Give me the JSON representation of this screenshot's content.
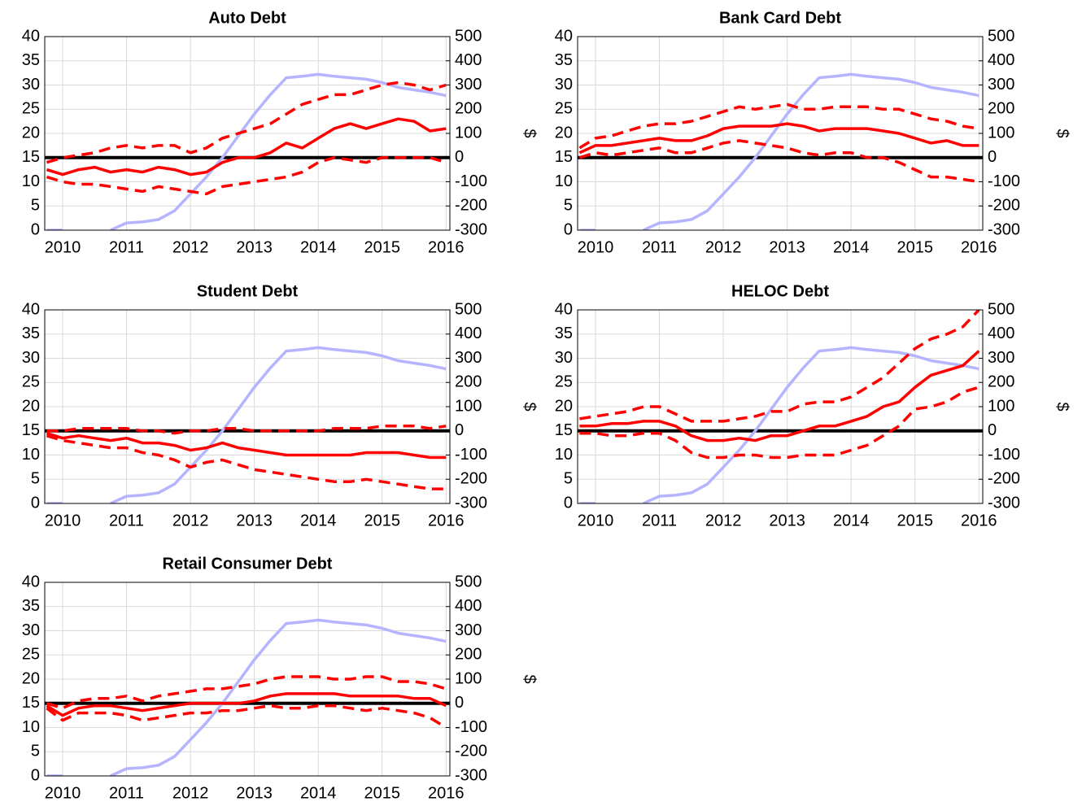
{
  "chart_data": [
    {
      "type": "line",
      "title": "Auto Debt",
      "y2label": "$",
      "x": [
        2009.75,
        2010,
        2010.25,
        2010.5,
        2010.75,
        2011,
        2011.25,
        2011.5,
        2011.75,
        2012,
        2012.25,
        2012.5,
        2012.75,
        2013,
        2013.25,
        2013.5,
        2013.75,
        2014,
        2014.25,
        2014.5,
        2014.75,
        2015,
        2015.25,
        2015.5,
        2015.75,
        2016
      ],
      "xlim": [
        2009.72,
        2016.06
      ],
      "xticks": [
        2010,
        2011,
        2012,
        2013,
        2014,
        2015,
        2016
      ],
      "ylim": [
        0,
        40
      ],
      "yticks": [
        0,
        5,
        10,
        15,
        20,
        25,
        30,
        35,
        40
      ],
      "y2lim": [
        -300,
        500
      ],
      "y2ticks": [
        -300,
        -200,
        -100,
        0,
        100,
        200,
        300,
        400,
        500
      ],
      "grid": true,
      "reference_line": {
        "value": 0,
        "axis": "y2",
        "color": "#000000"
      },
      "series": [
        {
          "color": "#b4b4ff",
          "axis": "y",
          "values": [
            0,
            0,
            null,
            null,
            0,
            1.5,
            1.7,
            2.2,
            4,
            7.5,
            11,
            15,
            19.5,
            24,
            28,
            31.5,
            31.8,
            32.2,
            31.8,
            31.5,
            31.2,
            30.5,
            29.5,
            29,
            28.5,
            27.8
          ]
        },
        {
          "color": "#ff0000",
          "axis": "y2",
          "dashed": false,
          "values": [
            -50,
            -70,
            -50,
            -40,
            -60,
            -50,
            -60,
            -40,
            -50,
            -70,
            -60,
            -20,
            0,
            0,
            20,
            60,
            40,
            80,
            120,
            140,
            120,
            140,
            160,
            150,
            110,
            120
          ]
        },
        {
          "color": "#ff0000",
          "axis": "y2",
          "dashed": true,
          "values": [
            -20,
            0,
            10,
            20,
            40,
            50,
            40,
            50,
            50,
            20,
            40,
            80,
            100,
            120,
            140,
            180,
            220,
            240,
            260,
            260,
            280,
            300,
            310,
            300,
            280,
            300
          ]
        },
        {
          "color": "#ff0000",
          "axis": "y2",
          "dashed": true,
          "values": [
            -80,
            -100,
            -110,
            -110,
            -120,
            -130,
            -140,
            -120,
            -130,
            -140,
            -150,
            -120,
            -110,
            -100,
            -90,
            -80,
            -60,
            -20,
            0,
            -10,
            -20,
            0,
            0,
            0,
            0,
            -20
          ]
        }
      ]
    },
    {
      "type": "line",
      "title": "Bank Card Debt",
      "y2label": "$",
      "x": [
        2009.75,
        2010,
        2010.25,
        2010.5,
        2010.75,
        2011,
        2011.25,
        2011.5,
        2011.75,
        2012,
        2012.25,
        2012.5,
        2012.75,
        2013,
        2013.25,
        2013.5,
        2013.75,
        2014,
        2014.25,
        2014.5,
        2014.75,
        2015,
        2015.25,
        2015.5,
        2015.75,
        2016
      ],
      "xlim": [
        2009.72,
        2016.06
      ],
      "xticks": [
        2010,
        2011,
        2012,
        2013,
        2014,
        2015,
        2016
      ],
      "ylim": [
        0,
        40
      ],
      "yticks": [
        0,
        5,
        10,
        15,
        20,
        25,
        30,
        35,
        40
      ],
      "y2lim": [
        -300,
        500
      ],
      "y2ticks": [
        -300,
        -200,
        -100,
        0,
        100,
        200,
        300,
        400,
        500
      ],
      "grid": true,
      "reference_line": {
        "value": 0,
        "axis": "y2",
        "color": "#000000"
      },
      "series": [
        {
          "color": "#b4b4ff",
          "axis": "y",
          "values": [
            0,
            0,
            null,
            null,
            0,
            1.5,
            1.7,
            2.2,
            4,
            7.5,
            11,
            15,
            19.5,
            24,
            28,
            31.5,
            31.8,
            32.2,
            31.8,
            31.5,
            31.2,
            30.5,
            29.5,
            29,
            28.5,
            27.8
          ]
        },
        {
          "color": "#ff0000",
          "axis": "y2",
          "dashed": false,
          "values": [
            20,
            50,
            50,
            60,
            70,
            80,
            70,
            70,
            90,
            120,
            130,
            130,
            130,
            140,
            130,
            110,
            120,
            120,
            120,
            110,
            100,
            80,
            60,
            70,
            50,
            50
          ]
        },
        {
          "color": "#ff0000",
          "axis": "y2",
          "dashed": true,
          "values": [
            40,
            80,
            90,
            110,
            130,
            140,
            140,
            150,
            170,
            190,
            210,
            200,
            210,
            220,
            200,
            200,
            210,
            210,
            210,
            200,
            200,
            180,
            160,
            150,
            130,
            120
          ]
        },
        {
          "color": "#ff0000",
          "axis": "y2",
          "dashed": true,
          "values": [
            0,
            20,
            10,
            20,
            30,
            40,
            20,
            20,
            40,
            60,
            70,
            60,
            50,
            40,
            20,
            10,
            20,
            20,
            0,
            0,
            -20,
            -50,
            -80,
            -80,
            -90,
            -100
          ]
        }
      ]
    },
    {
      "type": "line",
      "title": "Student Debt",
      "y2label": "$",
      "x": [
        2009.75,
        2010,
        2010.25,
        2010.5,
        2010.75,
        2011,
        2011.25,
        2011.5,
        2011.75,
        2012,
        2012.25,
        2012.5,
        2012.75,
        2013,
        2013.25,
        2013.5,
        2013.75,
        2014,
        2014.25,
        2014.5,
        2014.75,
        2015,
        2015.25,
        2015.5,
        2015.75,
        2016
      ],
      "xlim": [
        2009.72,
        2016.06
      ],
      "xticks": [
        2010,
        2011,
        2012,
        2013,
        2014,
        2015,
        2016
      ],
      "ylim": [
        0,
        40
      ],
      "yticks": [
        0,
        5,
        10,
        15,
        20,
        25,
        30,
        35,
        40
      ],
      "y2lim": [
        -300,
        500
      ],
      "y2ticks": [
        -300,
        -200,
        -100,
        0,
        100,
        200,
        300,
        400,
        500
      ],
      "grid": true,
      "reference_line": {
        "value": 0,
        "axis": "y2",
        "color": "#000000"
      },
      "series": [
        {
          "color": "#b4b4ff",
          "axis": "y",
          "values": [
            0,
            0,
            null,
            null,
            0,
            1.5,
            1.7,
            2.2,
            4,
            7.5,
            11,
            15,
            19.5,
            24,
            28,
            31.5,
            31.8,
            32.2,
            31.8,
            31.5,
            31.2,
            30.5,
            29.5,
            29,
            28.5,
            27.8
          ]
        },
        {
          "color": "#ff0000",
          "axis": "y2",
          "dashed": false,
          "values": [
            -10,
            -30,
            -20,
            -30,
            -40,
            -30,
            -50,
            -50,
            -60,
            -80,
            -70,
            -50,
            -70,
            -80,
            -90,
            -100,
            -100,
            -100,
            -100,
            -100,
            -90,
            -90,
            -90,
            -100,
            -110,
            -110
          ]
        },
        {
          "color": "#ff0000",
          "axis": "y2",
          "dashed": true,
          "values": [
            0,
            0,
            10,
            10,
            10,
            10,
            0,
            0,
            -10,
            0,
            0,
            10,
            10,
            0,
            0,
            0,
            0,
            0,
            10,
            10,
            10,
            20,
            20,
            20,
            10,
            20
          ]
        },
        {
          "color": "#ff0000",
          "axis": "y2",
          "dashed": true,
          "values": [
            -20,
            -40,
            -50,
            -60,
            -70,
            -70,
            -90,
            -100,
            -120,
            -150,
            -130,
            -120,
            -140,
            -160,
            -170,
            -180,
            -190,
            -200,
            -210,
            -210,
            -200,
            -210,
            -220,
            -230,
            -240,
            -240
          ]
        }
      ]
    },
    {
      "type": "line",
      "title": "HELOC Debt",
      "y2label": "$",
      "x": [
        2009.75,
        2010,
        2010.25,
        2010.5,
        2010.75,
        2011,
        2011.25,
        2011.5,
        2011.75,
        2012,
        2012.25,
        2012.5,
        2012.75,
        2013,
        2013.25,
        2013.5,
        2013.75,
        2014,
        2014.25,
        2014.5,
        2014.75,
        2015,
        2015.25,
        2015.5,
        2015.75,
        2016
      ],
      "xlim": [
        2009.72,
        2016.06
      ],
      "xticks": [
        2010,
        2011,
        2012,
        2013,
        2014,
        2015,
        2016
      ],
      "ylim": [
        0,
        40
      ],
      "yticks": [
        0,
        5,
        10,
        15,
        20,
        25,
        30,
        35,
        40
      ],
      "y2lim": [
        -300,
        500
      ],
      "y2ticks": [
        -300,
        -200,
        -100,
        0,
        100,
        200,
        300,
        400,
        500
      ],
      "grid": true,
      "reference_line": {
        "value": 0,
        "axis": "y2",
        "color": "#000000"
      },
      "series": [
        {
          "color": "#b4b4ff",
          "axis": "y",
          "values": [
            0,
            0,
            null,
            null,
            0,
            1.5,
            1.7,
            2.2,
            4,
            7.5,
            11,
            15,
            19.5,
            24,
            28,
            31.5,
            31.8,
            32.2,
            31.8,
            31.5,
            31.2,
            30.5,
            29.5,
            29,
            28.5,
            27.8
          ]
        },
        {
          "color": "#ff0000",
          "axis": "y2",
          "dashed": false,
          "values": [
            20,
            20,
            30,
            30,
            40,
            40,
            20,
            -20,
            -40,
            -40,
            -30,
            -40,
            -20,
            -20,
            0,
            20,
            20,
            40,
            60,
            100,
            120,
            180,
            230,
            250,
            270,
            330
          ]
        },
        {
          "color": "#ff0000",
          "axis": "y2",
          "dashed": true,
          "values": [
            50,
            60,
            70,
            80,
            100,
            100,
            70,
            40,
            40,
            40,
            50,
            60,
            80,
            80,
            110,
            120,
            120,
            140,
            180,
            220,
            280,
            340,
            380,
            400,
            430,
            500
          ]
        },
        {
          "color": "#ff0000",
          "axis": "y2",
          "dashed": true,
          "values": [
            -10,
            -10,
            -20,
            -20,
            -10,
            -10,
            -40,
            -90,
            -110,
            -110,
            -100,
            -100,
            -110,
            -110,
            -100,
            -100,
            -100,
            -80,
            -60,
            -20,
            20,
            90,
            100,
            120,
            160,
            180
          ]
        }
      ]
    },
    {
      "type": "line",
      "title": "Retail Consumer Debt",
      "y2label": "$",
      "x": [
        2009.75,
        2010,
        2010.25,
        2010.5,
        2010.75,
        2011,
        2011.25,
        2011.5,
        2011.75,
        2012,
        2012.25,
        2012.5,
        2012.75,
        2013,
        2013.25,
        2013.5,
        2013.75,
        2014,
        2014.25,
        2014.5,
        2014.75,
        2015,
        2015.25,
        2015.5,
        2015.75,
        2016
      ],
      "xlim": [
        2009.72,
        2016.06
      ],
      "xticks": [
        2010,
        2011,
        2012,
        2013,
        2014,
        2015,
        2016
      ],
      "ylim": [
        0,
        40
      ],
      "yticks": [
        0,
        5,
        10,
        15,
        20,
        25,
        30,
        35,
        40
      ],
      "y2lim": [
        -300,
        500
      ],
      "y2ticks": [
        -300,
        -200,
        -100,
        0,
        100,
        200,
        300,
        400,
        500
      ],
      "grid": true,
      "reference_line": {
        "value": 0,
        "axis": "y2",
        "color": "#000000"
      },
      "series": [
        {
          "color": "#b4b4ff",
          "axis": "y",
          "values": [
            0,
            0,
            null,
            null,
            0,
            1.5,
            1.7,
            2.2,
            4,
            7.5,
            11,
            15,
            19.5,
            24,
            28,
            31.5,
            31.8,
            32.2,
            31.8,
            31.5,
            31.2,
            30.5,
            29.5,
            29,
            28.5,
            27.8
          ]
        },
        {
          "color": "#ff0000",
          "axis": "y2",
          "dashed": false,
          "values": [
            -10,
            -50,
            -20,
            -10,
            -10,
            -20,
            -30,
            -20,
            -10,
            0,
            0,
            0,
            0,
            10,
            30,
            40,
            40,
            40,
            40,
            30,
            30,
            30,
            30,
            20,
            20,
            -10
          ]
        },
        {
          "color": "#ff0000",
          "axis": "y2",
          "dashed": true,
          "values": [
            0,
            -20,
            10,
            20,
            20,
            30,
            10,
            30,
            40,
            50,
            60,
            60,
            70,
            80,
            100,
            110,
            110,
            110,
            100,
            100,
            110,
            110,
            90,
            90,
            80,
            60
          ]
        },
        {
          "color": "#ff0000",
          "axis": "y2",
          "dashed": true,
          "values": [
            -20,
            -70,
            -40,
            -40,
            -40,
            -50,
            -70,
            -60,
            -50,
            -40,
            -40,
            -30,
            -30,
            -20,
            -10,
            -20,
            -20,
            -10,
            -10,
            -20,
            -30,
            -20,
            -30,
            -40,
            -60,
            -100
          ]
        }
      ]
    }
  ]
}
